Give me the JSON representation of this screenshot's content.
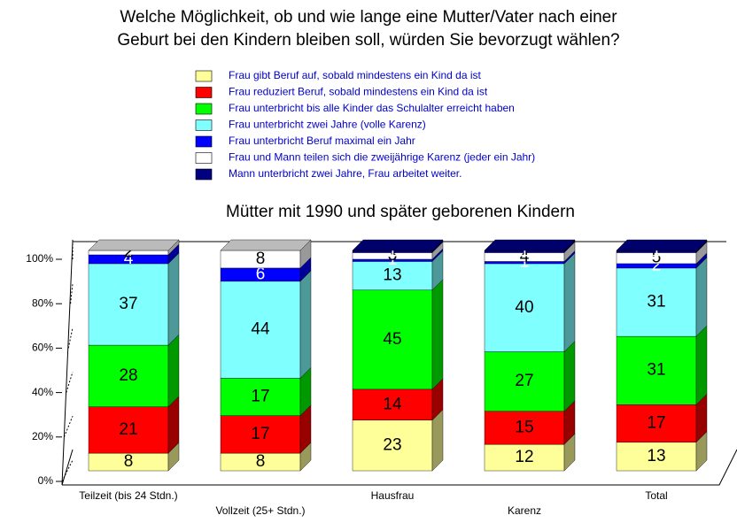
{
  "chart_data": {
    "type": "bar3d-stacked",
    "title": [
      "Welche Möglichkeit, ob und wie lange eine Mutter/Vater nach einer",
      "Geburt bei den Kindern bleiben soll, würden Sie bevorzugt wählen?"
    ],
    "subtitle": "Mütter mit 1990 und später geborenen Kindern",
    "categories": [
      "Teilzeit (bis 24 Stdn.)",
      "Vollzeit (25+ Stdn.)",
      "Hausfrau",
      "Karenz",
      "Total"
    ],
    "series": [
      {
        "name": "Frau gibt Beruf auf, sobald mindestens ein Kind da ist",
        "color": "#ffff99",
        "values": [
          8,
          8,
          23,
          12,
          13
        ]
      },
      {
        "name": "Frau reduziert Beruf, sobald mindestens ein Kind da ist",
        "color": "#ff0000",
        "values": [
          21,
          17,
          14,
          15,
          17
        ]
      },
      {
        "name": "Frau unterbricht bis alle Kinder das Schulalter erreicht haben",
        "color": "#00ff00",
        "values": [
          28,
          17,
          45,
          27,
          31
        ]
      },
      {
        "name": "Frau unterbricht zwei Jahre (volle Karenz)",
        "color": "#80ffff",
        "values": [
          37,
          44,
          13,
          40,
          31
        ]
      },
      {
        "name": "Frau unterbricht Beruf maximal ein Jahr",
        "color": "#0000ff",
        "values": [
          4,
          6,
          1,
          1,
          2
        ]
      },
      {
        "name": "Frau und Mann teilen sich die zweijährige Karenz (jeder ein Jahr)",
        "color": "#ffffff",
        "values": [
          2,
          8,
          3,
          4,
          5
        ]
      },
      {
        "name": "Mann unterbricht zwei Jahre, Frau arbeitet weiter.",
        "color": "#000080",
        "values": [
          null,
          null,
          1,
          1,
          1
        ]
      }
    ],
    "ylim": [
      0,
      100
    ],
    "yticks": [
      {
        "value": 0,
        "label": "0%"
      },
      {
        "value": 20,
        "label": "20%"
      },
      {
        "value": 40,
        "label": "40%"
      },
      {
        "value": 60,
        "label": "60%"
      },
      {
        "value": 80,
        "label": "80%"
      },
      {
        "value": 100,
        "label": "100%"
      }
    ]
  }
}
